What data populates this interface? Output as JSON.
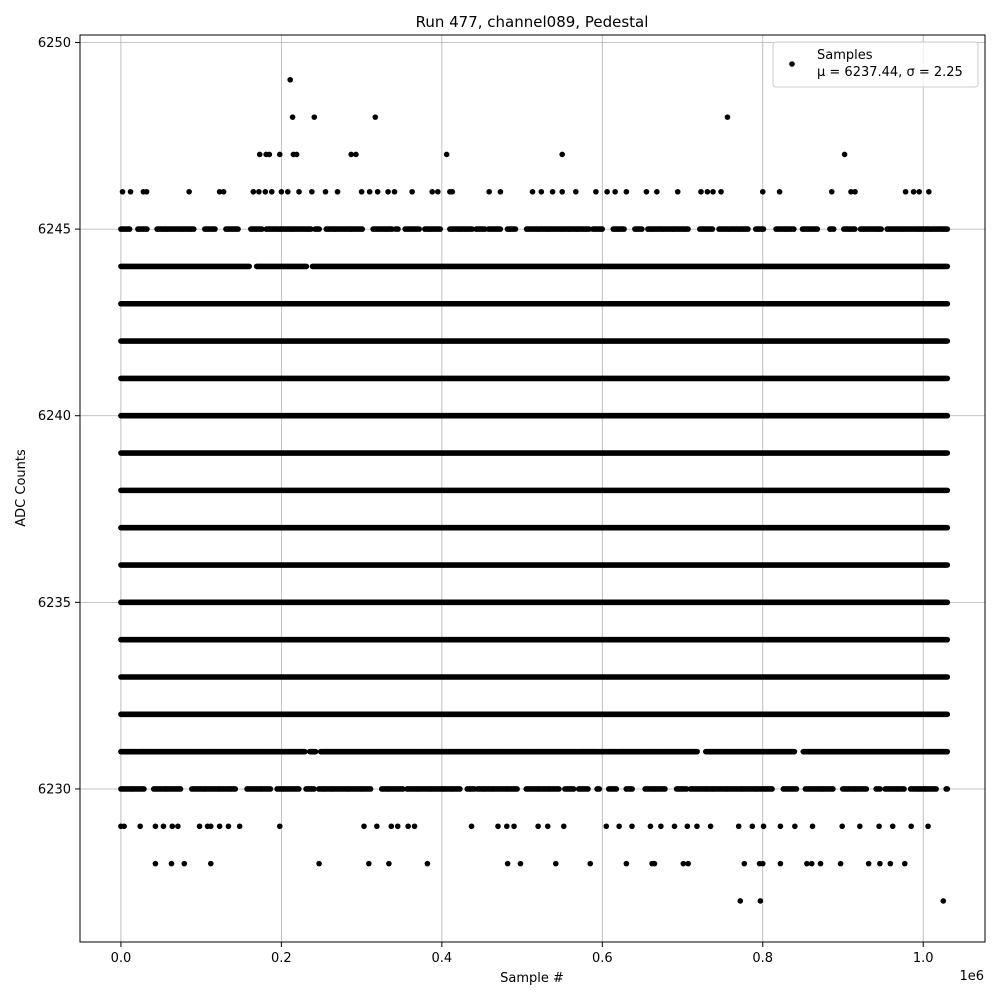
{
  "chart_data": {
    "type": "scatter",
    "title": "Run 477, channel089, Pedestal",
    "xlabel": "Sample #",
    "ylabel": "ADC Counts",
    "x_offset_label": "1e6",
    "xlim": [
      -0.051,
      1.077
    ],
    "ylim": [
      6225.9,
      6250.2
    ],
    "x_ticks": [
      0.0,
      0.2,
      0.4,
      0.6,
      0.8,
      1.0
    ],
    "x_tick_labels": [
      "0.0",
      "0.2",
      "0.4",
      "0.6",
      "0.8",
      "1.0"
    ],
    "y_ticks": [
      6230,
      6235,
      6240,
      6245,
      6250
    ],
    "y_tick_labels": [
      "6230",
      "6235",
      "6240",
      "6245",
      "6250"
    ],
    "grid": true,
    "legend_position": "top-right",
    "series": [
      {
        "name": "Samples",
        "stats_label": "μ = 6237.44, σ = 2.25",
        "color": "#000000",
        "x_range": [
          0.0,
          1.03
        ],
        "dense_levels": [
          6230,
          6231,
          6232,
          6233,
          6234,
          6235,
          6236,
          6237,
          6238,
          6239,
          6240,
          6241,
          6242,
          6243,
          6244,
          6245
        ],
        "sparse_points": [
          {
            "x": 0.0,
            "y": 6229
          },
          {
            "x": 0.004,
            "y": 6229
          },
          {
            "x": 0.024,
            "y": 6229
          },
          {
            "x": 0.043,
            "y": 6229
          },
          {
            "x": 0.053,
            "y": 6229
          },
          {
            "x": 0.064,
            "y": 6229
          },
          {
            "x": 0.071,
            "y": 6229
          },
          {
            "x": 0.098,
            "y": 6229
          },
          {
            "x": 0.108,
            "y": 6229
          },
          {
            "x": 0.112,
            "y": 6229
          },
          {
            "x": 0.123,
            "y": 6229
          },
          {
            "x": 0.134,
            "y": 6229
          },
          {
            "x": 0.148,
            "y": 6229
          },
          {
            "x": 0.198,
            "y": 6229
          },
          {
            "x": 0.303,
            "y": 6229
          },
          {
            "x": 0.319,
            "y": 6229
          },
          {
            "x": 0.337,
            "y": 6229
          },
          {
            "x": 0.345,
            "y": 6229
          },
          {
            "x": 0.358,
            "y": 6229
          },
          {
            "x": 0.366,
            "y": 6229
          },
          {
            "x": 0.437,
            "y": 6229
          },
          {
            "x": 0.47,
            "y": 6229
          },
          {
            "x": 0.481,
            "y": 6229
          },
          {
            "x": 0.49,
            "y": 6229
          },
          {
            "x": 0.52,
            "y": 6229
          },
          {
            "x": 0.532,
            "y": 6229
          },
          {
            "x": 0.552,
            "y": 6229
          },
          {
            "x": 0.605,
            "y": 6229
          },
          {
            "x": 0.621,
            "y": 6229
          },
          {
            "x": 0.637,
            "y": 6229
          },
          {
            "x": 0.66,
            "y": 6229
          },
          {
            "x": 0.673,
            "y": 6229
          },
          {
            "x": 0.69,
            "y": 6229
          },
          {
            "x": 0.706,
            "y": 6229
          },
          {
            "x": 0.718,
            "y": 6229
          },
          {
            "x": 0.735,
            "y": 6229
          },
          {
            "x": 0.77,
            "y": 6229
          },
          {
            "x": 0.787,
            "y": 6229
          },
          {
            "x": 0.801,
            "y": 6229
          },
          {
            "x": 0.822,
            "y": 6229
          },
          {
            "x": 0.84,
            "y": 6229
          },
          {
            "x": 0.862,
            "y": 6229
          },
          {
            "x": 0.899,
            "y": 6229
          },
          {
            "x": 0.921,
            "y": 6229
          },
          {
            "x": 0.945,
            "y": 6229
          },
          {
            "x": 0.962,
            "y": 6229
          },
          {
            "x": 0.985,
            "y": 6229
          },
          {
            "x": 1.006,
            "y": 6229
          },
          {
            "x": 0.043,
            "y": 6228
          },
          {
            "x": 0.063,
            "y": 6228
          },
          {
            "x": 0.079,
            "y": 6228
          },
          {
            "x": 0.112,
            "y": 6228
          },
          {
            "x": 0.247,
            "y": 6228
          },
          {
            "x": 0.309,
            "y": 6228
          },
          {
            "x": 0.334,
            "y": 6228
          },
          {
            "x": 0.382,
            "y": 6228
          },
          {
            "x": 0.482,
            "y": 6228
          },
          {
            "x": 0.498,
            "y": 6228
          },
          {
            "x": 0.542,
            "y": 6228
          },
          {
            "x": 0.585,
            "y": 6228
          },
          {
            "x": 0.63,
            "y": 6228
          },
          {
            "x": 0.662,
            "y": 6228
          },
          {
            "x": 0.665,
            "y": 6228
          },
          {
            "x": 0.701,
            "y": 6228
          },
          {
            "x": 0.707,
            "y": 6228
          },
          {
            "x": 0.777,
            "y": 6228
          },
          {
            "x": 0.796,
            "y": 6228
          },
          {
            "x": 0.8,
            "y": 6228
          },
          {
            "x": 0.822,
            "y": 6228
          },
          {
            "x": 0.855,
            "y": 6228
          },
          {
            "x": 0.861,
            "y": 6228
          },
          {
            "x": 0.872,
            "y": 6228
          },
          {
            "x": 0.897,
            "y": 6228
          },
          {
            "x": 0.932,
            "y": 6228
          },
          {
            "x": 0.946,
            "y": 6228
          },
          {
            "x": 0.959,
            "y": 6228
          },
          {
            "x": 0.977,
            "y": 6228
          },
          {
            "x": 0.772,
            "y": 6227
          },
          {
            "x": 0.797,
            "y": 6227
          },
          {
            "x": 1.025,
            "y": 6227
          },
          {
            "x": 0.002,
            "y": 6246
          },
          {
            "x": 0.012,
            "y": 6246
          },
          {
            "x": 0.028,
            "y": 6246
          },
          {
            "x": 0.032,
            "y": 6246
          },
          {
            "x": 0.085,
            "y": 6246
          },
          {
            "x": 0.123,
            "y": 6246
          },
          {
            "x": 0.128,
            "y": 6246
          },
          {
            "x": 0.165,
            "y": 6246
          },
          {
            "x": 0.172,
            "y": 6246
          },
          {
            "x": 0.18,
            "y": 6246
          },
          {
            "x": 0.188,
            "y": 6246
          },
          {
            "x": 0.2,
            "y": 6246
          },
          {
            "x": 0.208,
            "y": 6246
          },
          {
            "x": 0.222,
            "y": 6246
          },
          {
            "x": 0.238,
            "y": 6246
          },
          {
            "x": 0.255,
            "y": 6246
          },
          {
            "x": 0.27,
            "y": 6246
          },
          {
            "x": 0.3,
            "y": 6246
          },
          {
            "x": 0.31,
            "y": 6246
          },
          {
            "x": 0.32,
            "y": 6246
          },
          {
            "x": 0.333,
            "y": 6246
          },
          {
            "x": 0.341,
            "y": 6246
          },
          {
            "x": 0.363,
            "y": 6246
          },
          {
            "x": 0.388,
            "y": 6246
          },
          {
            "x": 0.395,
            "y": 6246
          },
          {
            "x": 0.41,
            "y": 6246
          },
          {
            "x": 0.413,
            "y": 6246
          },
          {
            "x": 0.459,
            "y": 6246
          },
          {
            "x": 0.473,
            "y": 6246
          },
          {
            "x": 0.513,
            "y": 6246
          },
          {
            "x": 0.524,
            "y": 6246
          },
          {
            "x": 0.538,
            "y": 6246
          },
          {
            "x": 0.55,
            "y": 6246
          },
          {
            "x": 0.567,
            "y": 6246
          },
          {
            "x": 0.592,
            "y": 6246
          },
          {
            "x": 0.606,
            "y": 6246
          },
          {
            "x": 0.616,
            "y": 6246
          },
          {
            "x": 0.63,
            "y": 6246
          },
          {
            "x": 0.655,
            "y": 6246
          },
          {
            "x": 0.668,
            "y": 6246
          },
          {
            "x": 0.694,
            "y": 6246
          },
          {
            "x": 0.723,
            "y": 6246
          },
          {
            "x": 0.731,
            "y": 6246
          },
          {
            "x": 0.738,
            "y": 6246
          },
          {
            "x": 0.748,
            "y": 6246
          },
          {
            "x": 0.8,
            "y": 6246
          },
          {
            "x": 0.821,
            "y": 6246
          },
          {
            "x": 0.886,
            "y": 6246
          },
          {
            "x": 0.91,
            "y": 6246
          },
          {
            "x": 0.915,
            "y": 6246
          },
          {
            "x": 0.978,
            "y": 6246
          },
          {
            "x": 0.988,
            "y": 6246
          },
          {
            "x": 0.995,
            "y": 6246
          },
          {
            "x": 1.007,
            "y": 6246
          },
          {
            "x": 0.173,
            "y": 6247
          },
          {
            "x": 0.181,
            "y": 6247
          },
          {
            "x": 0.185,
            "y": 6247
          },
          {
            "x": 0.198,
            "y": 6247
          },
          {
            "x": 0.215,
            "y": 6247
          },
          {
            "x": 0.219,
            "y": 6247
          },
          {
            "x": 0.287,
            "y": 6247
          },
          {
            "x": 0.293,
            "y": 6247
          },
          {
            "x": 0.406,
            "y": 6247
          },
          {
            "x": 0.55,
            "y": 6247
          },
          {
            "x": 0.902,
            "y": 6247
          },
          {
            "x": 0.214,
            "y": 6248
          },
          {
            "x": 0.241,
            "y": 6248
          },
          {
            "x": 0.317,
            "y": 6248
          },
          {
            "x": 0.756,
            "y": 6248
          },
          {
            "x": 0.211,
            "y": 6249
          }
        ]
      }
    ]
  }
}
